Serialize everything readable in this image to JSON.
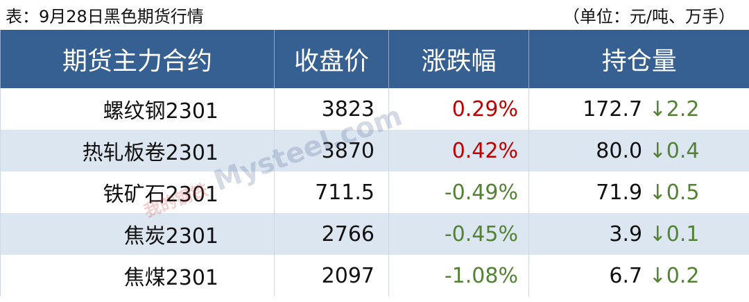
{
  "title": "表：9月28日黑色期货行情",
  "unit": "（单位：元/吨、万手）",
  "colors": {
    "header": "#366092",
    "alt_row": "#dce6f1",
    "up": "#c00000",
    "down": "#548235"
  },
  "watermark": "我的钢铁 Mysteel.com",
  "headers": [
    "期货主力合约",
    "收盘价",
    "涨跌幅",
    "持仓量"
  ],
  "rows": [
    {
      "contract": "螺纹钢2301",
      "close": "3823",
      "change": "0.29%",
      "dir": "up",
      "oi": "172.7",
      "oi_arrow": "↓",
      "oi_change": "2.2"
    },
    {
      "contract": "热轧板卷2301",
      "close": "3870",
      "change": "0.42%",
      "dir": "up",
      "oi": "80.0",
      "oi_arrow": "↓",
      "oi_change": "0.4"
    },
    {
      "contract": "铁矿石2301",
      "close": "711.5",
      "change": "-0.49%",
      "dir": "dn",
      "oi": "71.9",
      "oi_arrow": "↓",
      "oi_change": "0.5"
    },
    {
      "contract": "焦炭2301",
      "close": "2766",
      "change": "-0.45%",
      "dir": "dn",
      "oi": "3.9",
      "oi_arrow": "↓",
      "oi_change": "0.1"
    },
    {
      "contract": "焦煤2301",
      "close": "2097",
      "change": "-1.08%",
      "dir": "dn",
      "oi": "6.7",
      "oi_arrow": "↓",
      "oi_change": "0.2"
    }
  ]
}
